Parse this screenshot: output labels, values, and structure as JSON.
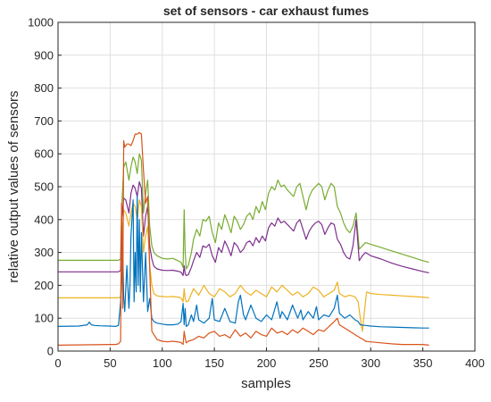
{
  "chart_data": {
    "type": "line",
    "title": "set of sensors - car exhaust fumes",
    "xlabel": "samples",
    "ylabel": "relative output values of sensors",
    "xlim": [
      0,
      400
    ],
    "ylim": [
      0,
      1000
    ],
    "xticks": [
      0,
      50,
      100,
      150,
      200,
      250,
      300,
      350,
      400
    ],
    "yticks": [
      0,
      100,
      200,
      300,
      400,
      500,
      600,
      700,
      800,
      900,
      1000
    ],
    "grid": true,
    "legend": "none",
    "series": [
      {
        "color": "#77ac30",
        "x": [
          0,
          55,
          58,
          60,
          61,
          63,
          65,
          68,
          70,
          72,
          74,
          76,
          78,
          80,
          82,
          84,
          86,
          88,
          90,
          92,
          95,
          100,
          105,
          110,
          115,
          118,
          120,
          121,
          122,
          123,
          125,
          128,
          130,
          133,
          136,
          139,
          142,
          145,
          148,
          151,
          154,
          157,
          160,
          163,
          166,
          169,
          172,
          175,
          178,
          181,
          184,
          187,
          190,
          193,
          196,
          199,
          202,
          205,
          208,
          211,
          214,
          217,
          220,
          223,
          226,
          229,
          232,
          235,
          238,
          241,
          244,
          247,
          250,
          253,
          256,
          259,
          262,
          265,
          268,
          271,
          274,
          277,
          280,
          283,
          286,
          289,
          292,
          295,
          300,
          310,
          320,
          330,
          340,
          350,
          356
        ],
        "y": [
          276,
          276,
          276,
          280,
          430,
          560,
          575,
          520,
          560,
          590,
          575,
          540,
          600,
          580,
          420,
          480,
          520,
          380,
          320,
          300,
          290,
          282,
          280,
          282,
          275,
          270,
          255,
          430,
          300,
          250,
          260,
          300,
          340,
          370,
          350,
          400,
          395,
          410,
          360,
          330,
          390,
          370,
          415,
          390,
          360,
          410,
          395,
          370,
          385,
          410,
          420,
          400,
          440,
          420,
          455,
          430,
          480,
          500,
          490,
          520,
          500,
          505,
          490,
          480,
          470,
          500,
          510,
          470,
          430,
          470,
          490,
          500,
          510,
          500,
          460,
          490,
          510,
          500,
          440,
          420,
          390,
          370,
          360,
          380,
          420,
          310,
          320,
          330,
          325,
          315,
          305,
          295,
          285,
          275,
          270
        ]
      },
      {
        "color": "#7e2f8e",
        "x": [
          0,
          55,
          58,
          60,
          61,
          63,
          65,
          68,
          70,
          72,
          74,
          76,
          78,
          80,
          82,
          84,
          86,
          88,
          90,
          92,
          95,
          100,
          105,
          110,
          115,
          118,
          120,
          121,
          122,
          123,
          125,
          128,
          130,
          133,
          136,
          139,
          142,
          145,
          148,
          151,
          154,
          157,
          160,
          163,
          166,
          169,
          172,
          175,
          178,
          181,
          184,
          187,
          190,
          193,
          196,
          199,
          202,
          205,
          208,
          211,
          214,
          217,
          220,
          223,
          226,
          229,
          232,
          235,
          238,
          241,
          244,
          247,
          250,
          253,
          256,
          259,
          262,
          265,
          268,
          271,
          274,
          277,
          280,
          283,
          286,
          289,
          292,
          295,
          300,
          310,
          320,
          330,
          340,
          350,
          356
        ],
        "y": [
          241,
          241,
          241,
          245,
          400,
          465,
          460,
          420,
          480,
          505,
          495,
          470,
          515,
          495,
          350,
          410,
          440,
          320,
          280,
          258,
          250,
          246,
          245,
          246,
          243,
          240,
          230,
          260,
          235,
          230,
          232,
          255,
          275,
          300,
          285,
          320,
          315,
          325,
          290,
          270,
          315,
          300,
          335,
          315,
          290,
          330,
          320,
          300,
          310,
          330,
          335,
          320,
          345,
          330,
          350,
          335,
          375,
          390,
          380,
          405,
          390,
          395,
          385,
          375,
          365,
          390,
          400,
          370,
          340,
          365,
          380,
          390,
          395,
          385,
          355,
          375,
          390,
          385,
          340,
          325,
          300,
          285,
          280,
          320,
          400,
          275,
          290,
          300,
          290,
          280,
          268,
          258,
          250,
          242,
          238
        ]
      },
      {
        "color": "#edb120",
        "x": [
          0,
          55,
          58,
          60,
          61,
          63,
          65,
          68,
          70,
          72,
          74,
          76,
          78,
          80,
          82,
          84,
          86,
          88,
          90,
          92,
          95,
          100,
          105,
          110,
          115,
          118,
          120,
          121,
          122,
          123,
          125,
          128,
          130,
          135,
          140,
          145,
          150,
          155,
          160,
          165,
          170,
          175,
          180,
          185,
          190,
          195,
          200,
          205,
          210,
          215,
          220,
          225,
          230,
          235,
          240,
          245,
          250,
          255,
          260,
          265,
          268,
          270,
          275,
          280,
          285,
          288,
          290,
          292,
          294,
          296,
          300,
          310,
          320,
          330,
          340,
          350,
          356
        ],
        "y": [
          162,
          162,
          162,
          165,
          320,
          430,
          420,
          380,
          420,
          450,
          440,
          400,
          460,
          440,
          300,
          350,
          380,
          260,
          200,
          175,
          168,
          166,
          165,
          166,
          164,
          162,
          150,
          190,
          160,
          150,
          152,
          175,
          190,
          170,
          200,
          175,
          165,
          190,
          180,
          165,
          175,
          200,
          180,
          170,
          185,
          175,
          165,
          195,
          180,
          200,
          185,
          170,
          180,
          165,
          175,
          195,
          185,
          165,
          175,
          185,
          210,
          175,
          165,
          170,
          165,
          150,
          100,
          60,
          120,
          180,
          175,
          172,
          170,
          168,
          166,
          164,
          162
        ]
      },
      {
        "color": "#0072bd",
        "x": [
          0,
          20,
          28,
          30,
          32,
          35,
          40,
          50,
          55,
          58,
          60,
          62,
          63,
          64,
          66,
          68,
          69,
          70,
          72,
          73,
          74,
          75,
          76,
          77,
          78,
          79,
          80,
          82,
          84,
          86,
          88,
          90,
          92,
          95,
          100,
          105,
          110,
          115,
          118,
          120,
          121,
          122,
          123,
          125,
          128,
          130,
          133,
          135,
          140,
          145,
          148,
          150,
          155,
          160,
          165,
          170,
          173,
          175,
          178,
          180,
          185,
          190,
          195,
          200,
          205,
          210,
          213,
          215,
          220,
          225,
          230,
          233,
          235,
          240,
          245,
          248,
          250,
          255,
          260,
          265,
          268,
          270,
          275,
          280,
          285,
          288,
          290,
          295,
          300,
          310,
          320,
          330,
          340,
          350,
          356
        ],
        "y": [
          75,
          76,
          80,
          88,
          80,
          78,
          77,
          76,
          75,
          78,
          150,
          320,
          160,
          120,
          260,
          130,
          200,
          350,
          460,
          150,
          300,
          180,
          470,
          200,
          400,
          180,
          360,
          150,
          300,
          120,
          160,
          100,
          90,
          85,
          82,
          80,
          80,
          82,
          90,
          145,
          80,
          130,
          75,
          80,
          110,
          90,
          140,
          95,
          85,
          100,
          160,
          95,
          90,
          130,
          90,
          85,
          150,
          170,
          110,
          95,
          140,
          100,
          90,
          110,
          95,
          150,
          100,
          120,
          95,
          140,
          100,
          125,
          95,
          120,
          100,
          135,
          95,
          110,
          105,
          130,
          170,
          115,
          100,
          110,
          95,
          90,
          80,
          78,
          76,
          74,
          73,
          72,
          71,
          70,
          70
        ]
      },
      {
        "color": "#d95319",
        "x": [
          0,
          50,
          55,
          58,
          60,
          61,
          62,
          63,
          64,
          66,
          68,
          70,
          72,
          74,
          76,
          78,
          80,
          82,
          84,
          86,
          88,
          90,
          95,
          100,
          105,
          110,
          115,
          118,
          120,
          121,
          122,
          123,
          125,
          130,
          135,
          140,
          145,
          150,
          155,
          160,
          165,
          170,
          175,
          180,
          185,
          190,
          195,
          200,
          205,
          210,
          215,
          220,
          225,
          230,
          235,
          240,
          245,
          250,
          255,
          260,
          265,
          268,
          270,
          275,
          280,
          285,
          290,
          293,
          295,
          300,
          310,
          320,
          330,
          340,
          350,
          356
        ],
        "y": [
          18,
          20,
          20,
          22,
          30,
          450,
          130,
          640,
          620,
          630,
          630,
          625,
          640,
          660,
          660,
          665,
          660,
          550,
          450,
          470,
          250,
          60,
          35,
          30,
          28,
          30,
          28,
          26,
          20,
          60,
          40,
          25,
          30,
          35,
          45,
          40,
          55,
          60,
          45,
          50,
          40,
          65,
          45,
          55,
          40,
          60,
          50,
          45,
          70,
          55,
          60,
          50,
          65,
          55,
          70,
          60,
          50,
          65,
          60,
          75,
          90,
          100,
          80,
          70,
          60,
          50,
          40,
          35,
          30,
          28,
          25,
          22,
          20,
          20,
          20,
          18
        ]
      }
    ]
  }
}
